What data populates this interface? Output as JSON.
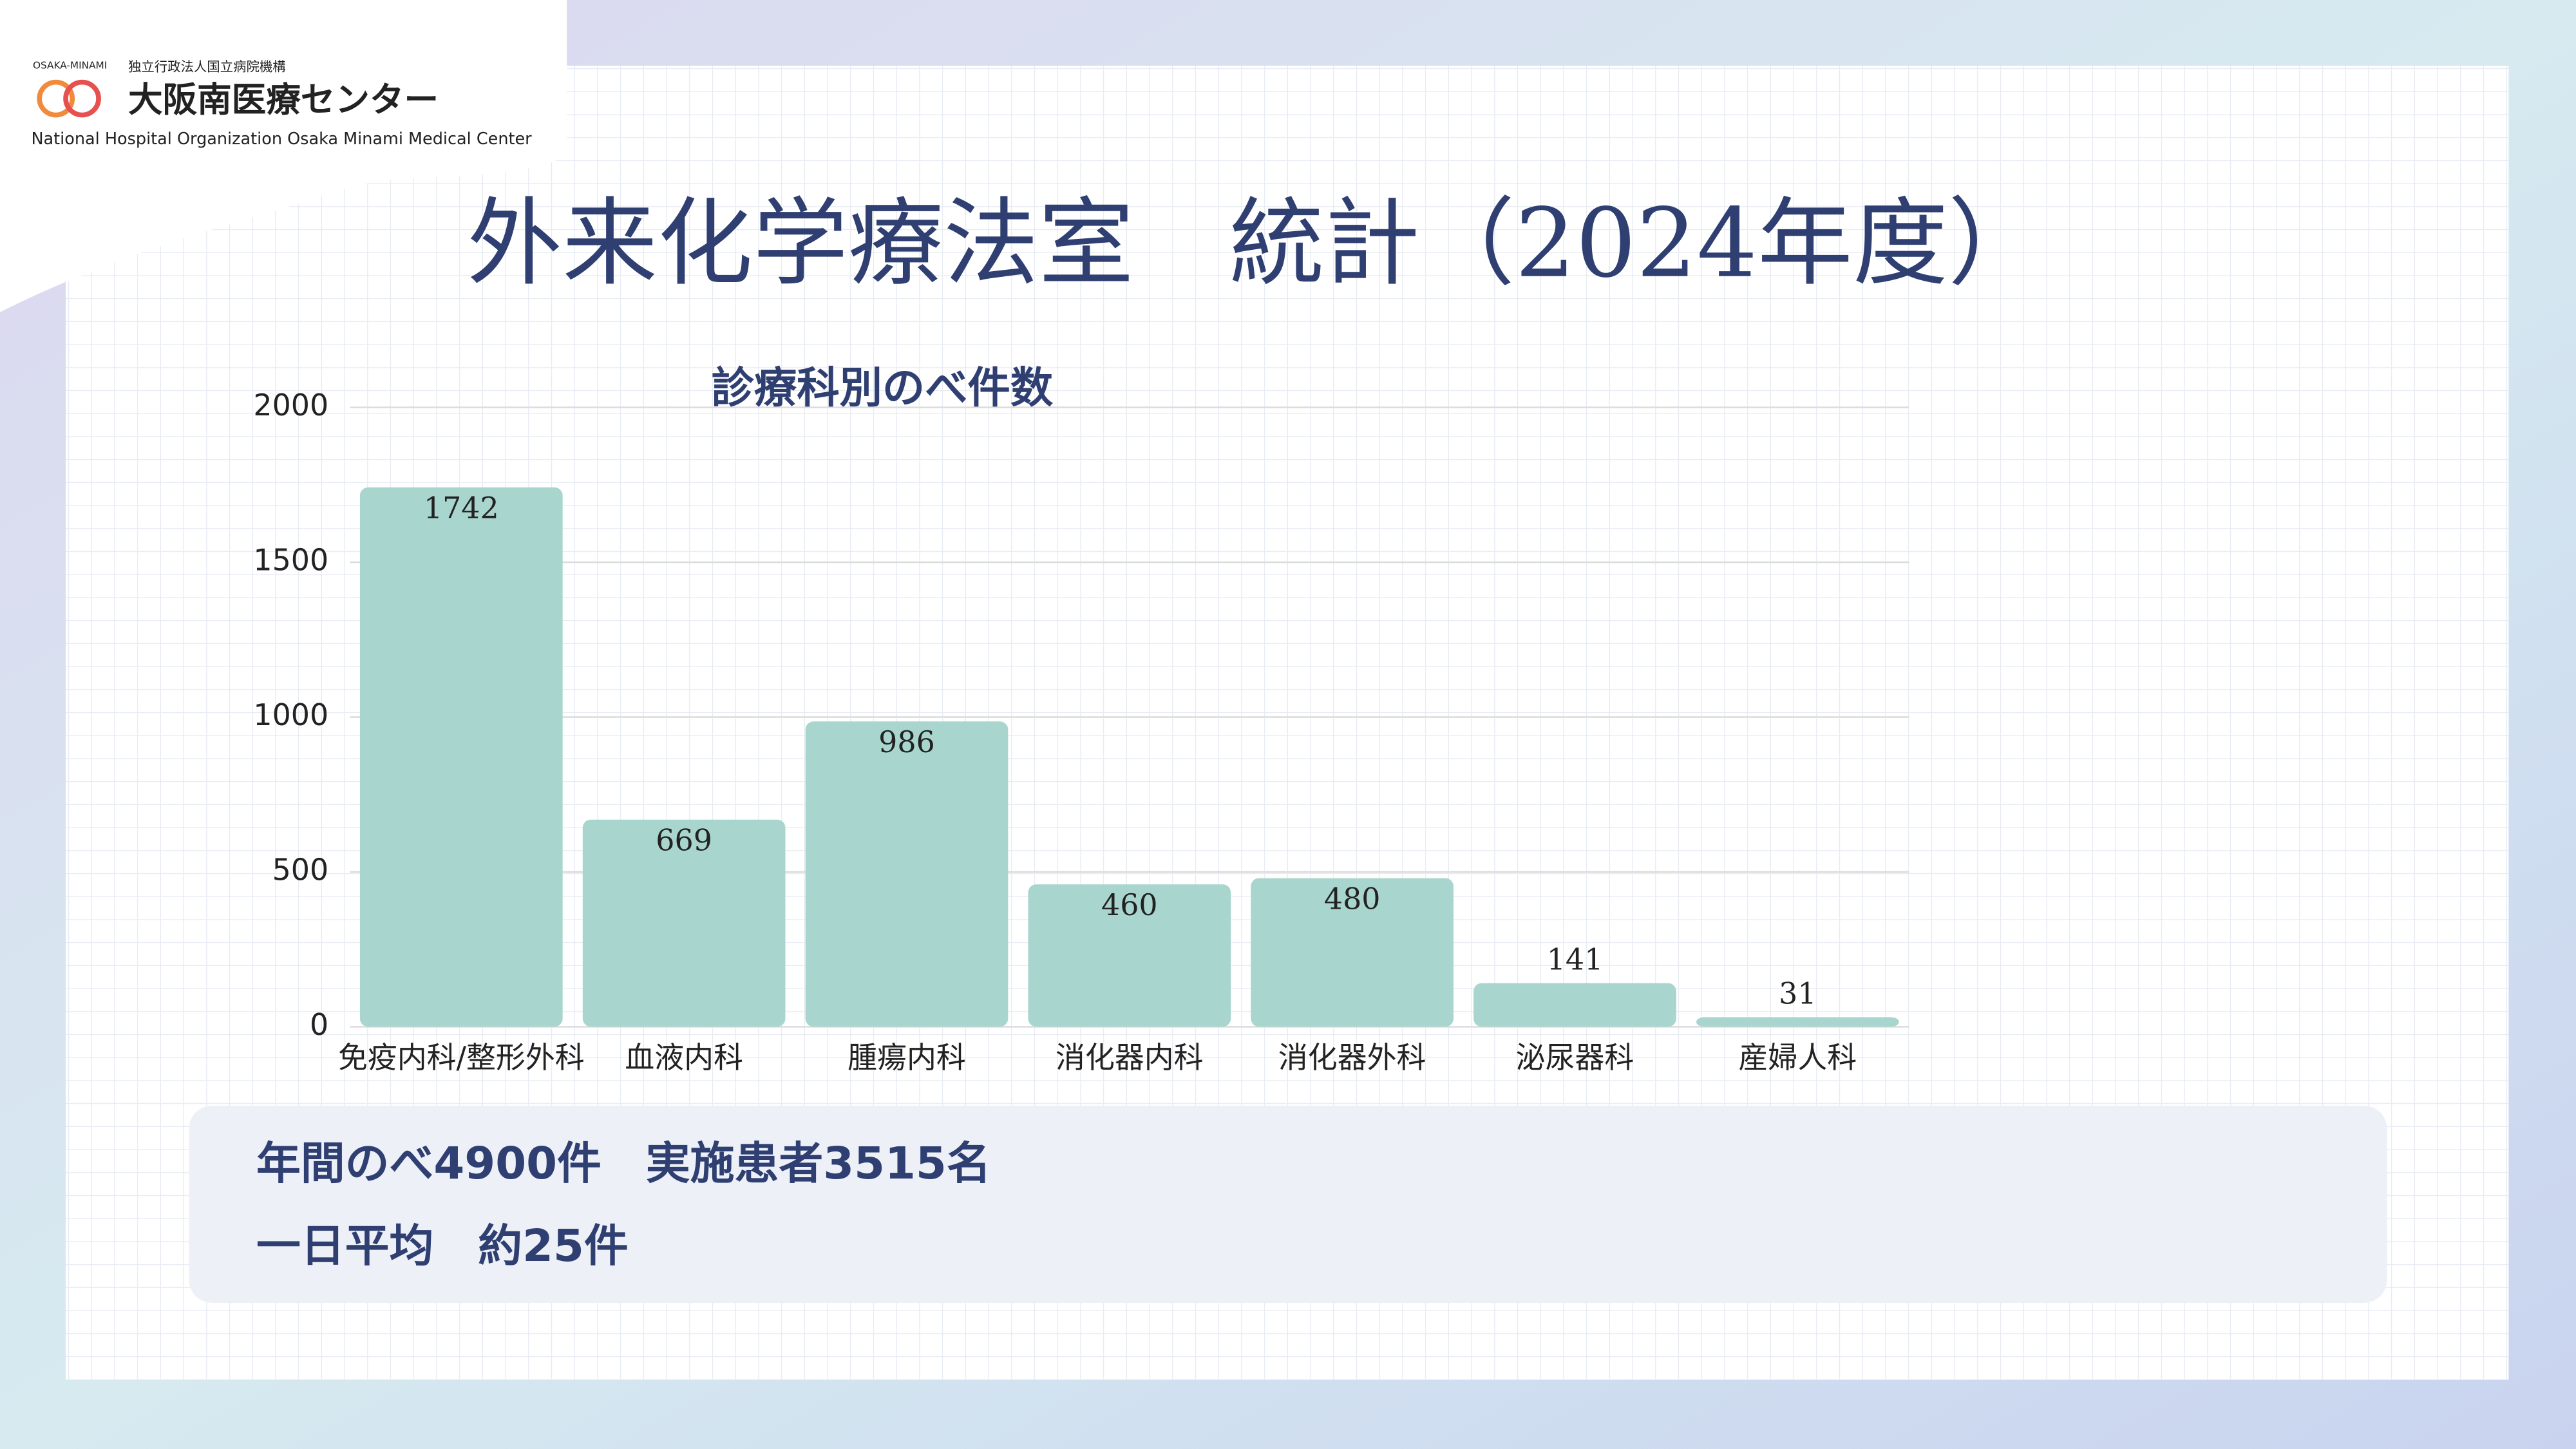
{
  "logo": {
    "org": "独立行政法人国立病院機構",
    "name": "大阪南医療センター",
    "english": "National Hospital Organization Osaka Minami Medical Center",
    "mark": "OSAKA-MINAMI"
  },
  "title": "外来化学療法室　統計（2024年度）",
  "chart_data": {
    "type": "bar",
    "title": "診療科別のべ件数",
    "categories": [
      "免疫内科/整形外科",
      "血液内科",
      "腫瘍内科",
      "消化器内科",
      "消化器外科",
      "泌尿器科",
      "産婦人科"
    ],
    "values": [
      1742,
      669,
      986,
      460,
      480,
      141,
      31
    ],
    "color": "#a8d5cd",
    "ylim": [
      0,
      2000
    ],
    "yticks": [
      0,
      500,
      1000,
      1500,
      2000
    ],
    "grid": true
  },
  "summary": {
    "line1": "年間のべ4900件　実施患者3515名",
    "line2": "一日平均　約25件"
  }
}
